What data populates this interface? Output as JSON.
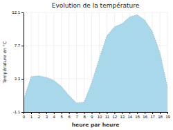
{
  "chart_data": {
    "type": "area",
    "title": "Evolution de la température",
    "x_label": "heure par heure",
    "y_label": "Température en °C",
    "x": [
      0,
      1,
      2,
      3,
      4,
      5,
      6,
      7,
      8,
      9,
      10,
      11,
      12,
      13,
      14,
      15,
      16,
      17,
      18,
      19
    ],
    "values": [
      0.5,
      3.6,
      3.7,
      3.5,
      3.1,
      2.3,
      1.1,
      0.1,
      0.2,
      2.8,
      6.0,
      9.0,
      10.2,
      10.6,
      11.5,
      11.8,
      11.1,
      9.6,
      6.8,
      2.2
    ],
    "xlim": [
      0,
      19
    ],
    "ylim": [
      -1.1,
      12.1
    ],
    "xticks": [
      0,
      1,
      2,
      3,
      4,
      5,
      6,
      7,
      8,
      9,
      10,
      11,
      12,
      13,
      14,
      15,
      16,
      17,
      18,
      19
    ],
    "yticks": [
      -1.1,
      3.3,
      7.7,
      12.1
    ],
    "color": "#a8d8ea",
    "line_style": "dotted",
    "grid": true
  }
}
